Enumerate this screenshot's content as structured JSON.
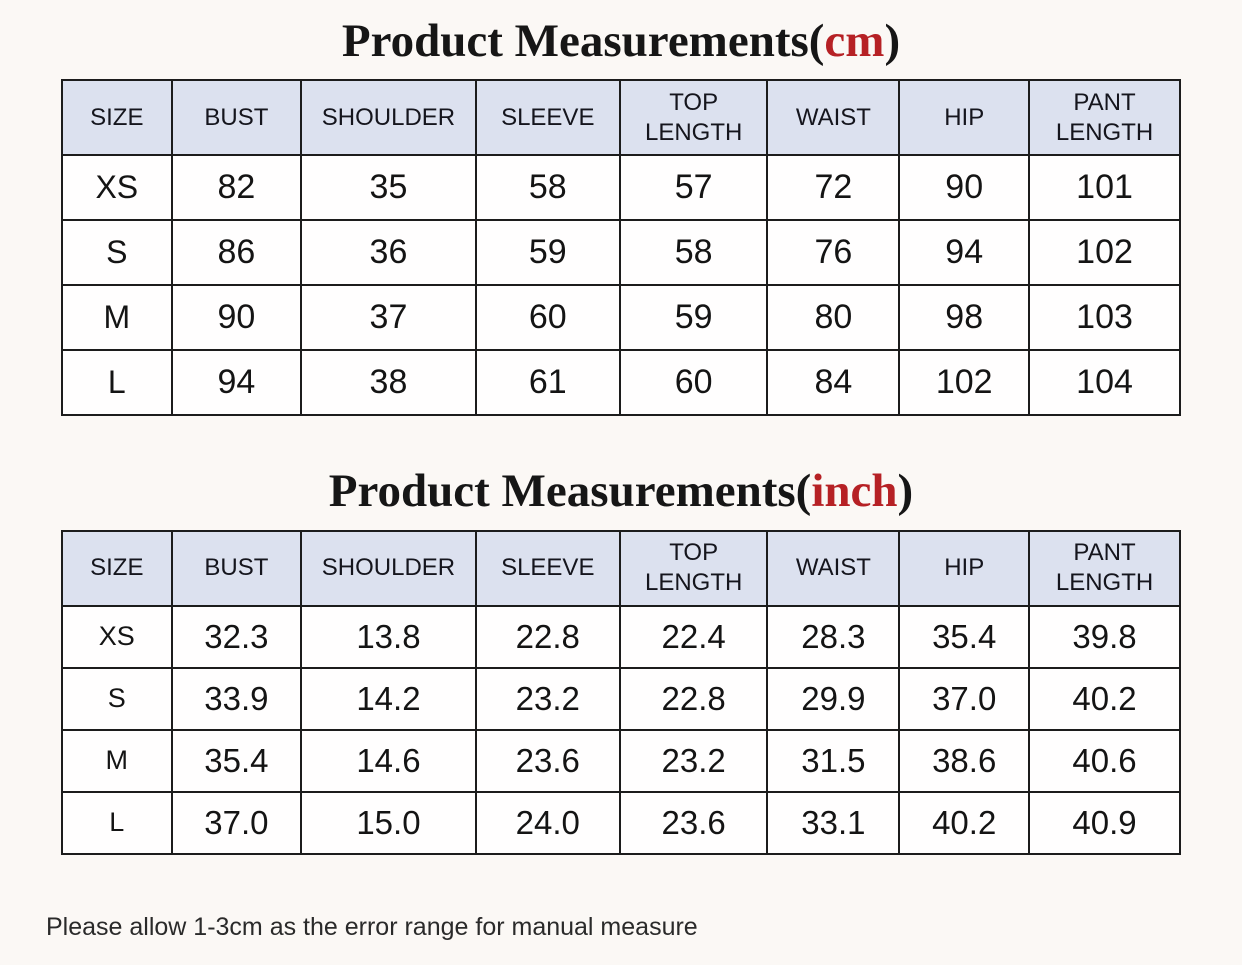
{
  "page": {
    "note": "Please allow 1-3cm as the error range for manual measure",
    "accent_red": "#b62125",
    "header_bg": "#dce1ef"
  },
  "tables": [
    {
      "title": {
        "prefix": "Product Measurements(",
        "unit": "cm",
        "suffix": ")"
      },
      "headers": [
        "SIZE",
        "BUST",
        "SHOULDER",
        "SLEEVE",
        "TOP LENGTH",
        "WAIST",
        "HIP",
        "PANT LENGTH"
      ],
      "rows": [
        [
          "XS",
          "82",
          "35",
          "58",
          "57",
          "72",
          "90",
          "101"
        ],
        [
          "S",
          "86",
          "36",
          "59",
          "58",
          "76",
          "94",
          "102"
        ],
        [
          "M",
          "90",
          "37",
          "60",
          "59",
          "80",
          "98",
          "103"
        ],
        [
          "L",
          "94",
          "38",
          "61",
          "60",
          "84",
          "102",
          "104"
        ]
      ]
    },
    {
      "title": {
        "prefix": "Product Measurements(",
        "unit": "inch",
        "suffix": ")"
      },
      "headers": [
        "SIZE",
        "BUST",
        "SHOULDER",
        "SLEEVE",
        "TOP LENGTH",
        "WAIST",
        "HIP",
        "PANT LENGTH"
      ],
      "rows": [
        [
          "XS",
          "32.3",
          "13.8",
          "22.8",
          "22.4",
          "28.3",
          "35.4",
          "39.8"
        ],
        [
          "S",
          "33.9",
          "14.2",
          "23.2",
          "22.8",
          "29.9",
          "37.0",
          "40.2"
        ],
        [
          "M",
          "35.4",
          "14.6",
          "23.6",
          "23.2",
          "31.5",
          "38.6",
          "40.6"
        ],
        [
          "L",
          "37.0",
          "15.0",
          "24.0",
          "23.6",
          "33.1",
          "40.2",
          "40.9"
        ]
      ]
    }
  ]
}
